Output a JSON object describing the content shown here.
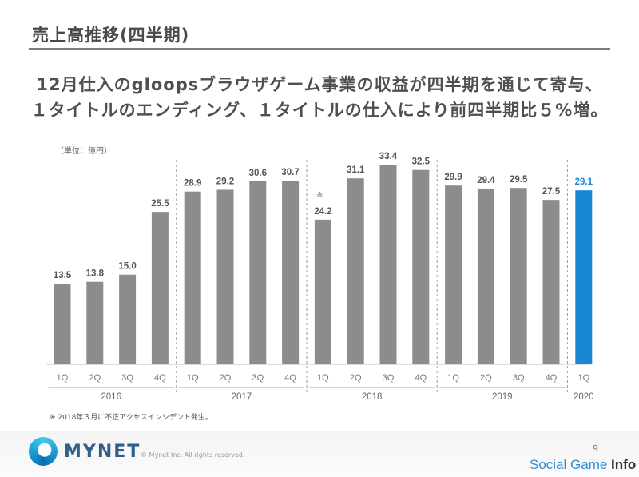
{
  "slide": {
    "title": "売上高推移(四半期)",
    "headline_line1": "12月仕入のgloopsブラウザゲーム事業の収益が四半期を通じて寄与、",
    "headline_line2": "１タイトルのエンディング、１タイトルの仕入により前四半期比５%増。",
    "unit": "（単位：億円）",
    "footnote": "※ 2018年３月に不正アクセスインシデント発生。",
    "page_number": "9"
  },
  "footer": {
    "brand": "MYNET",
    "copyright": "© Mynet Inc. All rights reserved.",
    "watermark_a": "Social Game ",
    "watermark_b": "Info"
  },
  "chart_data": {
    "type": "bar",
    "categories": [
      "1Q",
      "2Q",
      "3Q",
      "4Q",
      "1Q",
      "2Q",
      "3Q",
      "4Q",
      "1Q",
      "2Q",
      "3Q",
      "4Q",
      "1Q",
      "2Q",
      "3Q",
      "4Q",
      "1Q"
    ],
    "values": [
      13.5,
      13.8,
      15.0,
      25.5,
      28.9,
      29.2,
      30.6,
      30.7,
      24.2,
      31.1,
      33.4,
      32.5,
      29.9,
      29.4,
      29.5,
      27.5,
      29.1
    ],
    "value_labels": [
      "13.5",
      "13.8",
      "15.0",
      "25.5",
      "28.9",
      "29.2",
      "30.6",
      "30.7",
      "24.2",
      "31.1",
      "33.4",
      "32.5",
      "29.9",
      "29.4",
      "29.5",
      "27.5",
      "29.1"
    ],
    "years": [
      {
        "label": "2016",
        "start": 0,
        "end": 3
      },
      {
        "label": "2017",
        "start": 4,
        "end": 7
      },
      {
        "label": "2018",
        "start": 8,
        "end": 11
      },
      {
        "label": "2019",
        "start": 12,
        "end": 15
      },
      {
        "label": "2020",
        "start": 16,
        "end": 16
      }
    ],
    "annotations": [
      {
        "index": 8,
        "text": "※"
      }
    ],
    "highlight_index": 16,
    "colors": {
      "bar": "#8c8c8c",
      "highlight": "#1a86d6",
      "label": "#555555",
      "highlight_label": "#1a86d6",
      "axis": "#bdbdbd"
    },
    "ylim": [
      0,
      36
    ]
  }
}
